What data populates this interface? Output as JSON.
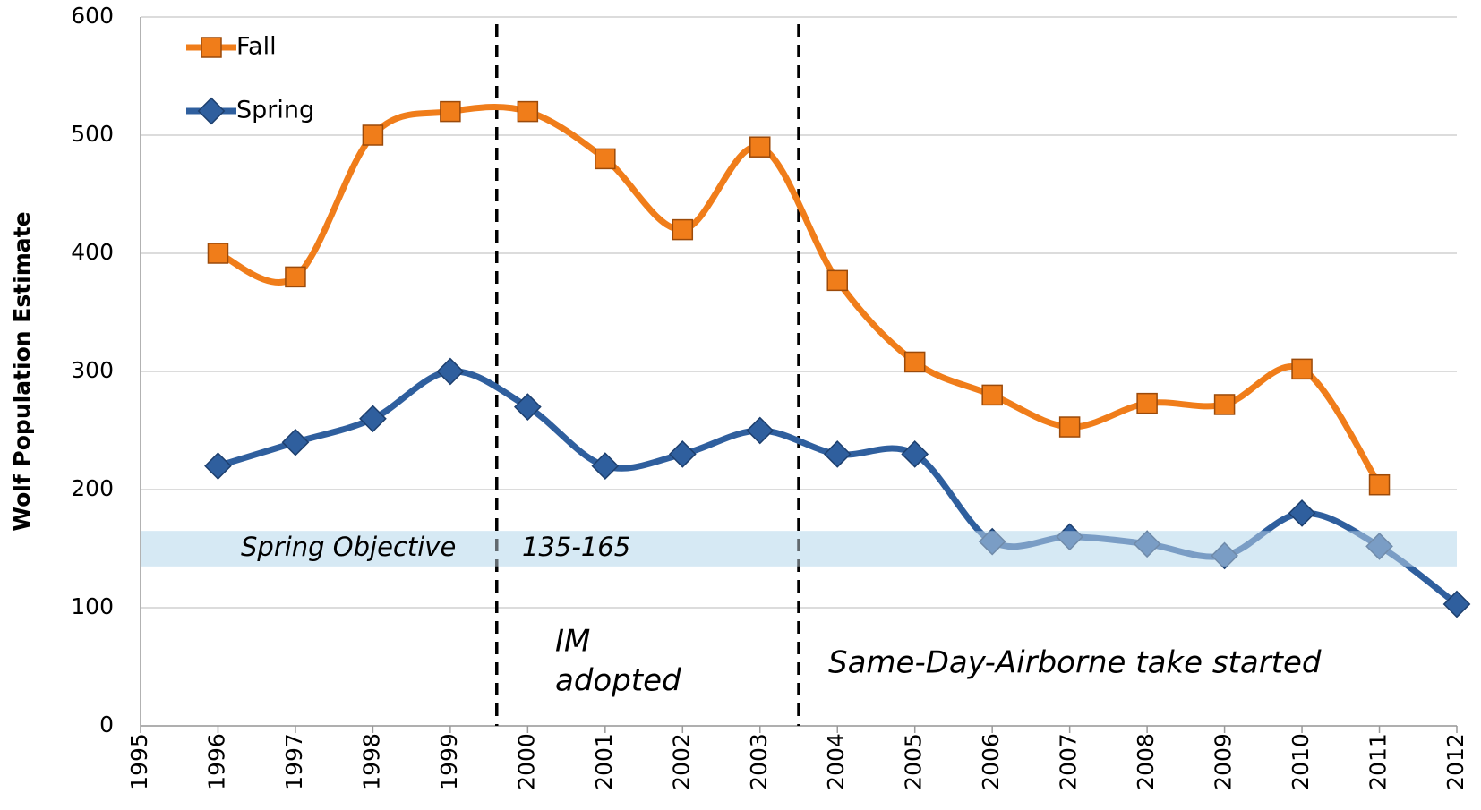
{
  "chart_data": {
    "type": "line",
    "y_label": "Wolf Population Estimate",
    "x": [
      1995,
      1996,
      1997,
      1998,
      1999,
      2000,
      2001,
      2002,
      2003,
      2004,
      2005,
      2006,
      2007,
      2008,
      2009,
      2010,
      2011,
      2012
    ],
    "series": [
      {
        "name": "Fall",
        "color": "#f07d1a",
        "marker": "square",
        "values": [
          null,
          400,
          380,
          500,
          520,
          520,
          480,
          420,
          490,
          377,
          308,
          280,
          253,
          273,
          272,
          302,
          204,
          null
        ]
      },
      {
        "name": "Spring",
        "color": "#2f5f9e",
        "marker": "diamond",
        "values": [
          null,
          220,
          240,
          260,
          300,
          270,
          220,
          230,
          250,
          230,
          230,
          156,
          160,
          154,
          144,
          180,
          152,
          103
        ]
      }
    ],
    "xlim": [
      1995,
      2012
    ],
    "xticks": [
      1995,
      1996,
      1997,
      1998,
      1999,
      2000,
      2001,
      2002,
      2003,
      2004,
      2005,
      2006,
      2007,
      2008,
      2009,
      2010,
      2011,
      2012
    ],
    "ylim": [
      0,
      600
    ],
    "yticks": [
      0,
      100,
      200,
      300,
      400,
      500,
      600
    ],
    "grid": true,
    "legend": "upper left",
    "objective_band": {
      "range": [
        135,
        165
      ],
      "label": "Spring Objective",
      "range_label": "135-165",
      "color": "#d6e9f5"
    },
    "vlines": [
      1999.6,
      2003.5
    ],
    "annotations": [
      "IM",
      "adopted",
      "Same-Day-Airborne take started"
    ]
  }
}
